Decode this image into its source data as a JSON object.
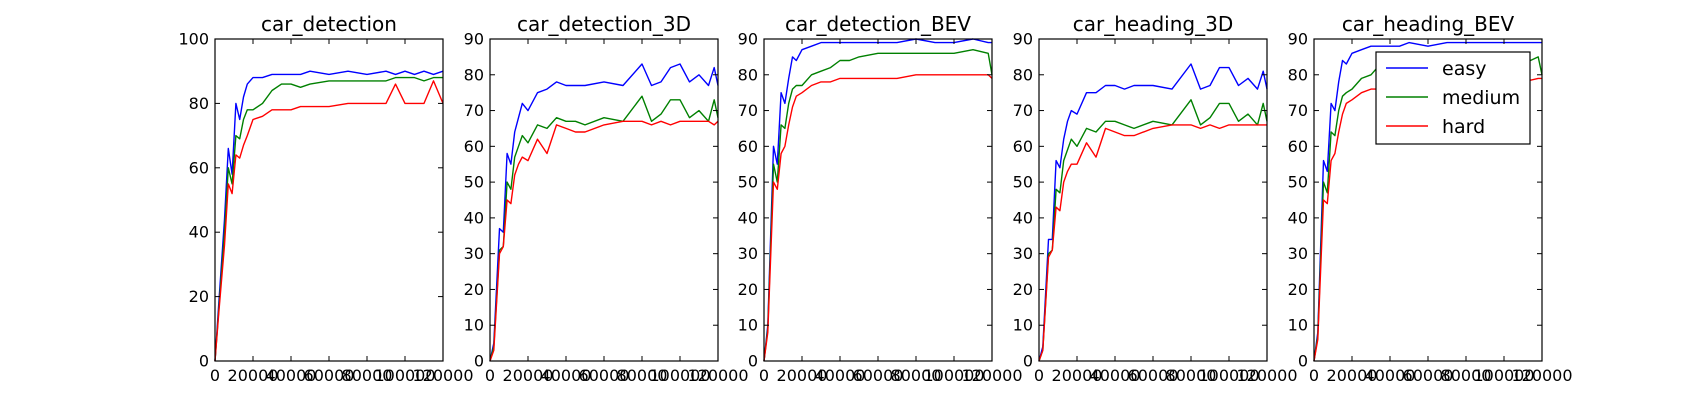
{
  "figure": {
    "legend": {
      "location": "upper-right of last panel",
      "entries": [
        {
          "label": "easy",
          "color": "#0000ff"
        },
        {
          "label": "medium",
          "color": "#008000"
        },
        {
          "label": "hard",
          "color": "#ff0000"
        }
      ]
    }
  },
  "chart_data": [
    {
      "type": "line",
      "title": "car_detection",
      "xlim": [
        0,
        120000
      ],
      "ylim": [
        0,
        100
      ],
      "xticks": [
        0,
        20000,
        40000,
        60000,
        80000,
        100000,
        120000
      ],
      "xtick_labels": [
        "0",
        "20000",
        "40000",
        "60000",
        "80000",
        "100000",
        "120000"
      ],
      "yticks": [
        0,
        20,
        40,
        60,
        80,
        100
      ],
      "ytick_labels": [
        "0",
        "20",
        "40",
        "60",
        "80",
        "100"
      ],
      "grid": false,
      "x": [
        0,
        2000,
        5000,
        7000,
        9000,
        11000,
        13000,
        15000,
        17000,
        20000,
        25000,
        30000,
        35000,
        40000,
        45000,
        50000,
        60000,
        70000,
        80000,
        90000,
        95000,
        100000,
        105000,
        110000,
        115000,
        120000
      ],
      "series": [
        {
          "name": "easy",
          "color": "#0000ff",
          "values": [
            0,
            18,
            44,
            66,
            58,
            80,
            75,
            82,
            86,
            88,
            88,
            89,
            89,
            89,
            89,
            90,
            89,
            90,
            89,
            90,
            89,
            90,
            89,
            90,
            89,
            90
          ]
        },
        {
          "name": "medium",
          "color": "#008000",
          "values": [
            0,
            16,
            40,
            60,
            55,
            70,
            69,
            75,
            78,
            78,
            80,
            84,
            86,
            86,
            85,
            86,
            87,
            87,
            87,
            87,
            88,
            88,
            88,
            87,
            88,
            88
          ]
        },
        {
          "name": "hard",
          "color": "#ff0000",
          "values": [
            0,
            15,
            36,
            55,
            52,
            64,
            63,
            67,
            70,
            75,
            76,
            78,
            78,
            78,
            79,
            79,
            79,
            80,
            80,
            80,
            86,
            80,
            80,
            80,
            87,
            80
          ]
        }
      ]
    },
    {
      "type": "line",
      "title": "car_detection_3D",
      "xlim": [
        0,
        120000
      ],
      "ylim": [
        0,
        90
      ],
      "xticks": [
        0,
        20000,
        40000,
        60000,
        80000,
        100000,
        120000
      ],
      "xtick_labels": [
        "0",
        "20000",
        "40000",
        "60000",
        "80000",
        "100000",
        "120000"
      ],
      "yticks": [
        0,
        10,
        20,
        30,
        40,
        50,
        60,
        70,
        80,
        90
      ],
      "ytick_labels": [
        "0",
        "10",
        "20",
        "30",
        "40",
        "50",
        "60",
        "70",
        "80",
        "90"
      ],
      "grid": false,
      "x": [
        0,
        2000,
        5000,
        7000,
        9000,
        11000,
        13000,
        15000,
        17000,
        20000,
        25000,
        30000,
        35000,
        40000,
        45000,
        50000,
        60000,
        70000,
        80000,
        85000,
        90000,
        95000,
        100000,
        105000,
        110000,
        115000,
        118000,
        120000
      ],
      "series": [
        {
          "name": "easy",
          "color": "#0000ff",
          "values": [
            0,
            5,
            37,
            36,
            58,
            55,
            64,
            68,
            72,
            70,
            75,
            76,
            78,
            77,
            77,
            77,
            78,
            77,
            83,
            77,
            78,
            82,
            83,
            78,
            80,
            77,
            82,
            77
          ]
        },
        {
          "name": "medium",
          "color": "#008000",
          "values": [
            0,
            4,
            31,
            32,
            50,
            48,
            57,
            60,
            63,
            61,
            66,
            65,
            68,
            67,
            67,
            66,
            68,
            67,
            74,
            67,
            69,
            73,
            73,
            68,
            70,
            67,
            73,
            68
          ]
        },
        {
          "name": "hard",
          "color": "#ff0000",
          "values": [
            0,
            3,
            30,
            32,
            45,
            44,
            52,
            55,
            57,
            56,
            62,
            58,
            66,
            65,
            64,
            64,
            66,
            67,
            67,
            66,
            67,
            66,
            67,
            67,
            67,
            67,
            66,
            67
          ]
        }
      ]
    },
    {
      "type": "line",
      "title": "car_detection_BEV",
      "xlim": [
        0,
        120000
      ],
      "ylim": [
        0,
        90
      ],
      "xticks": [
        0,
        20000,
        40000,
        60000,
        80000,
        100000,
        120000
      ],
      "xtick_labels": [
        "0",
        "20000",
        "40000",
        "60000",
        "80000",
        "100000",
        "120000"
      ],
      "yticks": [
        0,
        10,
        20,
        30,
        40,
        50,
        60,
        70,
        80,
        90
      ],
      "ytick_labels": [
        "0",
        "10",
        "20",
        "30",
        "40",
        "50",
        "60",
        "70",
        "80",
        "90"
      ],
      "grid": false,
      "x": [
        0,
        2000,
        5000,
        7000,
        9000,
        11000,
        13000,
        15000,
        17000,
        20000,
        25000,
        30000,
        35000,
        40000,
        45000,
        50000,
        60000,
        70000,
        80000,
        90000,
        100000,
        110000,
        118000,
        120000
      ],
      "series": [
        {
          "name": "easy",
          "color": "#0000ff",
          "values": [
            0,
            10,
            60,
            55,
            75,
            72,
            79,
            85,
            84,
            87,
            88,
            89,
            89,
            89,
            89,
            89,
            89,
            89,
            90,
            89,
            89,
            90,
            89,
            89
          ]
        },
        {
          "name": "medium",
          "color": "#008000",
          "values": [
            0,
            9,
            55,
            50,
            66,
            65,
            72,
            76,
            77,
            77,
            80,
            81,
            82,
            84,
            84,
            85,
            86,
            86,
            86,
            86,
            86,
            87,
            86,
            80
          ]
        },
        {
          "name": "hard",
          "color": "#ff0000",
          "values": [
            0,
            8,
            50,
            48,
            58,
            60,
            66,
            71,
            74,
            75,
            77,
            78,
            78,
            79,
            79,
            79,
            79,
            79,
            80,
            80,
            80,
            80,
            80,
            79
          ]
        }
      ]
    },
    {
      "type": "line",
      "title": "car_heading_3D",
      "xlim": [
        0,
        120000
      ],
      "ylim": [
        0,
        90
      ],
      "xticks": [
        0,
        20000,
        40000,
        60000,
        80000,
        100000,
        120000
      ],
      "xtick_labels": [
        "0",
        "20000",
        "40000",
        "60000",
        "80000",
        "100000",
        "120000"
      ],
      "yticks": [
        0,
        10,
        20,
        30,
        40,
        50,
        60,
        70,
        80,
        90
      ],
      "ytick_labels": [
        "0",
        "10",
        "20",
        "30",
        "40",
        "50",
        "60",
        "70",
        "80",
        "90"
      ],
      "grid": false,
      "x": [
        0,
        2000,
        5000,
        7000,
        9000,
        11000,
        13000,
        15000,
        17000,
        20000,
        25000,
        30000,
        35000,
        40000,
        45000,
        50000,
        60000,
        70000,
        80000,
        85000,
        90000,
        95000,
        100000,
        105000,
        110000,
        115000,
        118000,
        120000
      ],
      "series": [
        {
          "name": "easy",
          "color": "#0000ff",
          "values": [
            0,
            4,
            34,
            34,
            56,
            54,
            62,
            67,
            70,
            69,
            75,
            75,
            77,
            77,
            76,
            77,
            77,
            76,
            83,
            76,
            77,
            82,
            82,
            77,
            79,
            76,
            81,
            76
          ]
        },
        {
          "name": "medium",
          "color": "#008000",
          "values": [
            0,
            3,
            30,
            31,
            48,
            47,
            56,
            59,
            62,
            60,
            65,
            64,
            67,
            67,
            66,
            65,
            67,
            66,
            73,
            66,
            68,
            72,
            72,
            67,
            69,
            66,
            72,
            67
          ]
        },
        {
          "name": "hard",
          "color": "#ff0000",
          "values": [
            0,
            3,
            29,
            31,
            43,
            42,
            50,
            53,
            55,
            55,
            61,
            57,
            65,
            64,
            63,
            63,
            65,
            66,
            66,
            65,
            66,
            65,
            66,
            66,
            66,
            66,
            66,
            66
          ]
        }
      ]
    },
    {
      "type": "line",
      "title": "car_heading_BEV",
      "xlim": [
        0,
        120000
      ],
      "ylim": [
        0,
        90
      ],
      "xticks": [
        0,
        20000,
        40000,
        60000,
        80000,
        100000,
        120000
      ],
      "xtick_labels": [
        "0",
        "20000",
        "40000",
        "60000",
        "80000",
        "100000",
        "120000"
      ],
      "yticks": [
        0,
        10,
        20,
        30,
        40,
        50,
        60,
        70,
        80,
        90
      ],
      "ytick_labels": [
        "0",
        "10",
        "20",
        "30",
        "40",
        "50",
        "60",
        "70",
        "80",
        "90"
      ],
      "grid": false,
      "x": [
        0,
        2000,
        5000,
        7000,
        9000,
        11000,
        13000,
        15000,
        17000,
        20000,
        25000,
        30000,
        35000,
        40000,
        45000,
        50000,
        60000,
        70000,
        80000,
        90000,
        100000,
        110000,
        118000,
        120000
      ],
      "series": [
        {
          "name": "easy",
          "color": "#0000ff",
          "values": [
            0,
            8,
            56,
            53,
            72,
            70,
            78,
            84,
            83,
            86,
            87,
            88,
            88,
            88,
            88,
            89,
            88,
            89,
            89,
            89,
            89,
            89,
            89,
            89
          ]
        },
        {
          "name": "medium",
          "color": "#008000",
          "values": [
            0,
            7,
            50,
            47,
            64,
            63,
            70,
            74,
            75,
            76,
            79,
            80,
            83,
            81,
            80,
            80,
            81,
            81,
            80,
            81,
            82,
            83,
            85,
            80
          ]
        },
        {
          "name": "hard",
          "color": "#ff0000",
          "values": [
            0,
            6,
            45,
            44,
            56,
            58,
            64,
            69,
            72,
            73,
            75,
            76,
            76,
            76,
            77,
            77,
            77,
            78,
            78,
            78,
            78,
            78,
            79,
            79
          ]
        }
      ]
    }
  ]
}
